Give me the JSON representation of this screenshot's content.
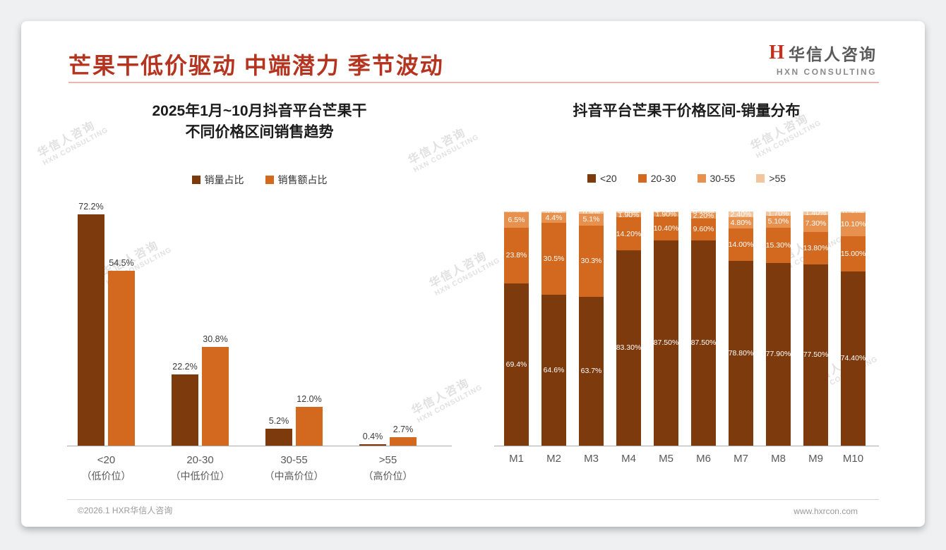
{
  "header": {
    "title": "芒果干低价驱动 中端潜力 季节波动"
  },
  "logo": {
    "mark": "H",
    "name_cn": "华信人咨询",
    "name_en": "HXN CONSULTING"
  },
  "watermark": {
    "line1": "华信人咨询",
    "line2": "HXN CONSULTING"
  },
  "footer": {
    "left": "©2026.1 HXR华信人咨询",
    "right": "www.hxrcon.com"
  },
  "colors": {
    "accent_red": "#b5341f",
    "brown": "#7c3a0d",
    "orange": "#d2691e",
    "orange_light": "#e8914e",
    "peach": "#f2c59c",
    "axis_gray": "#ababab",
    "label_gray": "#595959"
  },
  "chart_data": [
    {
      "type": "bar",
      "title": "2025年1月~10月抖音平台芒果干 不同价格区间销售趋势",
      "title_lines": [
        "2025年1月~10月抖音平台芒果干",
        "不同价格区间销售趋势"
      ],
      "categories": [
        "<20",
        "20-30",
        "30-55",
        ">55"
      ],
      "category_notes": [
        "（低价位）",
        "（中低价位）",
        "（中高价位）",
        "（高价位）"
      ],
      "ylim": [
        0,
        80
      ],
      "grid": false,
      "legend_position": "top",
      "value_suffix": "%",
      "series": [
        {
          "name": "销量占比",
          "color": "#7c3a0d",
          "values": [
            72.2,
            22.2,
            5.2,
            0.4
          ],
          "labels": [
            "72.2%",
            "22.2%",
            "5.2%",
            "0.4%"
          ]
        },
        {
          "name": "销售额占比",
          "color": "#d2691e",
          "values": [
            54.5,
            30.8,
            12.0,
            2.7
          ],
          "labels": [
            "54.5%",
            "30.8%",
            "12.0%",
            "2.7%"
          ]
        }
      ]
    },
    {
      "type": "stacked-bar",
      "title": "抖音平台芒果干价格区间-销量分布",
      "title_lines": [
        "抖音平台芒果干价格区间-销量分布"
      ],
      "categories": [
        "M1",
        "M2",
        "M3",
        "M4",
        "M5",
        "M6",
        "M7",
        "M8",
        "M9",
        "M10"
      ],
      "ylim": [
        0,
        100
      ],
      "grid": false,
      "legend_position": "top",
      "value_suffix": "%",
      "series": [
        {
          "name": "<20",
          "color": "#7c3a0d",
          "values": [
            69.4,
            64.6,
            63.7,
            83.3,
            87.5,
            87.5,
            78.8,
            77.9,
            77.5,
            74.4
          ],
          "labels": [
            "69.4%",
            "64.6%",
            "63.7%",
            "83.30%",
            "87.50%",
            "87.50%",
            "78.80%",
            "77.90%",
            "77.50%",
            "74.40%"
          ]
        },
        {
          "name": "20-30",
          "color": "#d2691e",
          "values": [
            23.8,
            30.5,
            30.3,
            14.2,
            10.4,
            9.6,
            14.0,
            15.3,
            13.8,
            15.0
          ],
          "labels": [
            "23.8%",
            "30.5%",
            "30.3%",
            "14.20%",
            "10.40%",
            "9.60%",
            "14.00%",
            "15.30%",
            "13.80%",
            "15.00%"
          ]
        },
        {
          "name": "30-55",
          "color": "#e8914e",
          "values": [
            6.5,
            4.4,
            5.1,
            1.9,
            1.9,
            2.2,
            4.8,
            5.1,
            7.3,
            10.1
          ],
          "labels": [
            "6.5%",
            "4.4%",
            "5.1%",
            "1.90%",
            "1.90%",
            "2.20%",
            "4.80%",
            "5.10%",
            "7.30%",
            "10.10%"
          ]
        },
        {
          "name": ">55",
          "color": "#f2c59c",
          "values": [
            0.3,
            0.5,
            0.9,
            0.6,
            0.2,
            0.7,
            2.4,
            1.7,
            1.4,
            0.5
          ],
          "labels": [
            "0.3%",
            "0.5%",
            "0.9%",
            "0.60%",
            "0.20%",
            "0.70%",
            "2.40%",
            "1.70%",
            "1.40%",
            "0.50%"
          ]
        }
      ]
    }
  ]
}
